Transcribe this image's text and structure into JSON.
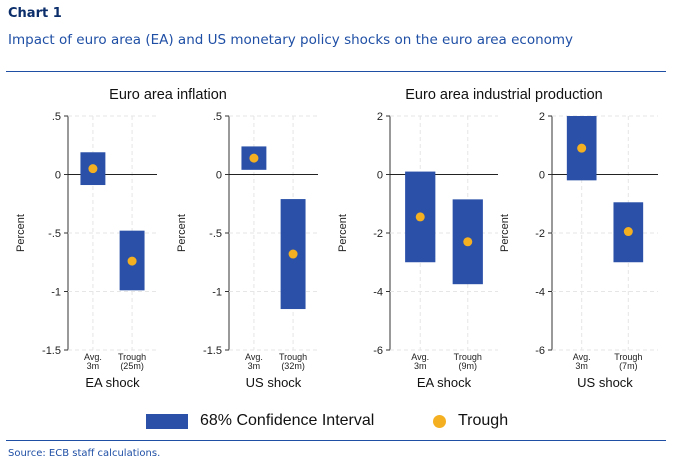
{
  "header": {
    "chart_label": "Chart 1",
    "title": "Impact of euro area (EA) and US monetary policy shocks on the euro area economy"
  },
  "legend": {
    "ci_label": "68% Confidence Interval",
    "trough_label": "Trough"
  },
  "source": "Source: ECB staff calculations.",
  "colors": {
    "bar": "#2a50a8",
    "dot": "#f5b021",
    "title": "#1f4fa5"
  },
  "chart_data": [
    {
      "type": "bar",
      "group_title": "Euro area inflation",
      "xlabel": "EA shock",
      "ylabel": "Percent",
      "ylim": [
        -1.5,
        0.5
      ],
      "yticks": [
        0.5,
        0,
        -0.5,
        -1,
        -1.5
      ],
      "ytick_labels": [
        ".5",
        "0",
        "-.5",
        "-1",
        "-1.5"
      ],
      "categories": [
        [
          "Avg.",
          "3m"
        ],
        [
          "Trough",
          "(25m)"
        ]
      ],
      "ranges": [
        [
          -0.09,
          0.19
        ],
        [
          -0.99,
          -0.48
        ]
      ],
      "trough": [
        0.05,
        -0.74
      ]
    },
    {
      "type": "bar",
      "xlabel": "US shock",
      "ylabel": "Percent",
      "ylim": [
        -1.5,
        0.5
      ],
      "yticks": [
        0.5,
        0,
        -0.5,
        -1,
        -1.5
      ],
      "ytick_labels": [
        ".5",
        "0",
        "-.5",
        "-1",
        "-1.5"
      ],
      "categories": [
        [
          "Avg.",
          "3m"
        ],
        [
          "Trough",
          "(32m)"
        ]
      ],
      "ranges": [
        [
          0.04,
          0.24
        ],
        [
          -1.15,
          -0.21
        ]
      ],
      "trough": [
        0.14,
        -0.68
      ]
    },
    {
      "type": "bar",
      "group_title": "Euro area industrial production",
      "xlabel": "EA shock",
      "ylabel": "Percent",
      "ylim": [
        -6,
        2
      ],
      "yticks": [
        2,
        0,
        -2,
        -4,
        -6
      ],
      "ytick_labels": [
        "2",
        "0",
        "-2",
        "-4",
        "-6"
      ],
      "categories": [
        [
          "Avg.",
          "3m"
        ],
        [
          "Trough",
          "(9m)"
        ]
      ],
      "ranges": [
        [
          -3.0,
          0.1
        ],
        [
          -3.75,
          -0.85
        ]
      ],
      "trough": [
        -1.45,
        -2.3
      ]
    },
    {
      "type": "bar",
      "xlabel": "US shock",
      "ylabel": "Percent",
      "ylim": [
        -6,
        2
      ],
      "yticks": [
        2,
        0,
        -2,
        -4,
        -6
      ],
      "ytick_labels": [
        "2",
        "0",
        "-2",
        "-4",
        "-6"
      ],
      "categories": [
        [
          "Avg.",
          "3m"
        ],
        [
          "Trough",
          "(7m)"
        ]
      ],
      "ranges": [
        [
          -0.2,
          2.0
        ],
        [
          -3.0,
          -0.95
        ]
      ],
      "trough": [
        0.9,
        -1.95
      ]
    }
  ]
}
